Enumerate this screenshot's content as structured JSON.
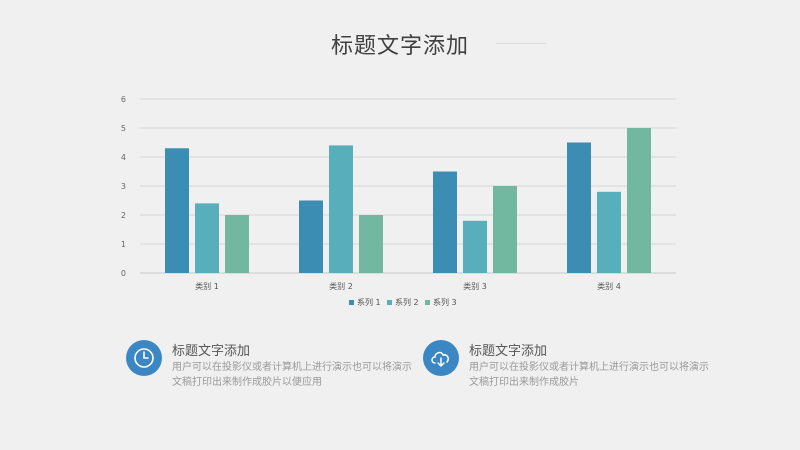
{
  "title": "标题文字添加",
  "chart_data": {
    "type": "bar",
    "categories": [
      "类别 1",
      "类别 2",
      "类别 3",
      "类别 4"
    ],
    "series": [
      {
        "name": "系列 1",
        "values": [
          4.3,
          2.5,
          3.5,
          4.5
        ],
        "color": "#3b8db3"
      },
      {
        "name": "系列 2",
        "values": [
          2.4,
          4.4,
          1.8,
          2.8
        ],
        "color": "#58aebb"
      },
      {
        "name": "系列 3",
        "values": [
          2.0,
          2.0,
          3.0,
          5.0
        ],
        "color": "#72b7a0"
      }
    ],
    "ylim": [
      0,
      6
    ],
    "yticks": [
      "0",
      "1",
      "2",
      "3",
      "4",
      "5",
      "6"
    ],
    "grid": true,
    "legend": "bottom"
  },
  "cards": [
    {
      "title": "标题文字添加",
      "desc": "用户可以在投影仪或者计算机上进行演示也可以将演示文稿打印出来制作成胶片以便应用",
      "icon": "clock-icon"
    },
    {
      "title": "标题文字添加",
      "desc": "用户可以在投影仪或者计算机上进行演示也可以将演示文稿打印出来制作成胶片",
      "icon": "cloud-download-icon"
    }
  ]
}
